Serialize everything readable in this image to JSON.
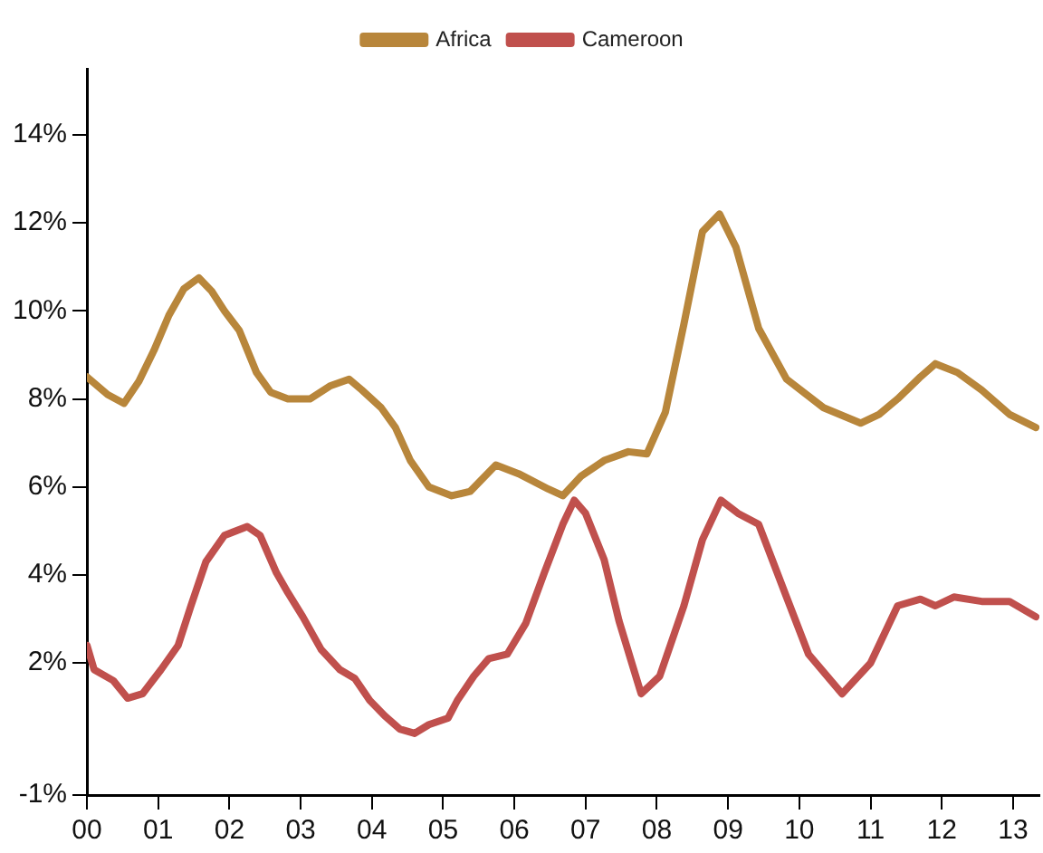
{
  "chart_data": {
    "type": "line",
    "legend": "top",
    "grid": false,
    "marker": "none",
    "line_style": "solid",
    "xlim": [
      2000,
      2013.37
    ],
    "xticks": [
      {
        "value": 2000,
        "label": "00"
      },
      {
        "value": 2001,
        "label": "01"
      },
      {
        "value": 2002,
        "label": "02"
      },
      {
        "value": 2003,
        "label": "03"
      },
      {
        "value": 2004,
        "label": "04"
      },
      {
        "value": 2005,
        "label": "05"
      },
      {
        "value": 2006,
        "label": "06"
      },
      {
        "value": 2007,
        "label": "07"
      },
      {
        "value": 2008,
        "label": "08"
      },
      {
        "value": 2009,
        "label": "09"
      },
      {
        "value": 2010,
        "label": "10"
      },
      {
        "value": 2011,
        "label": "11"
      },
      {
        "value": 2012,
        "label": "12"
      },
      {
        "value": 2013,
        "label": "13"
      }
    ],
    "ylim": [
      -1,
      15.5
    ],
    "yticks": [
      {
        "value": -1,
        "label": "-1%"
      },
      {
        "value": 2,
        "label": "2%"
      },
      {
        "value": 4,
        "label": "4%"
      },
      {
        "value": 6,
        "label": "6%"
      },
      {
        "value": 8,
        "label": "8%"
      },
      {
        "value": 10,
        "label": "10%"
      },
      {
        "value": 12,
        "label": "12%"
      },
      {
        "value": 14,
        "label": "14%"
      }
    ],
    "series": [
      {
        "name": "Africa",
        "color": "#b8863b",
        "x": [
          2000,
          2000.29,
          2000.52,
          2000.73,
          2000.94,
          2001.15,
          2001.36,
          2001.57,
          2001.75,
          2001.93,
          2002.14,
          2002.38,
          2002.58,
          2002.82,
          2003.13,
          2003.42,
          2003.68,
          2003.86,
          2004.13,
          2004.33,
          2004.54,
          2004.8,
          2005.12,
          2005.38,
          2005.74,
          2006.06,
          2006.48,
          2006.68,
          2006.94,
          2007.26,
          2007.6,
          2007.86,
          2008.12,
          2008.38,
          2008.64,
          2008.88,
          2009.11,
          2009.43,
          2009.82,
          2010.34,
          2010.86,
          2011.12,
          2011.38,
          2011.7,
          2011.91,
          2012.22,
          2012.56,
          2012.95,
          2013.32
        ],
        "values": [
          8.5,
          8.1,
          7.9,
          8.4,
          9.1,
          9.9,
          10.5,
          10.75,
          10.45,
          10.0,
          9.55,
          8.6,
          8.15,
          8.0,
          8.0,
          8.3,
          8.45,
          8.2,
          7.8,
          7.35,
          6.6,
          6.0,
          5.8,
          5.9,
          6.5,
          6.3,
          5.95,
          5.8,
          6.25,
          6.6,
          6.8,
          6.75,
          7.7,
          9.7,
          11.8,
          12.2,
          11.45,
          9.6,
          8.45,
          7.8,
          7.45,
          7.65,
          8.0,
          8.5,
          8.8,
          8.6,
          8.2,
          7.65,
          7.35
        ]
      },
      {
        "name": "Cameroon",
        "color": "#c0504d",
        "x": [
          2000,
          2000.1,
          2000.37,
          2000.57,
          2000.78,
          2001.04,
          2001.28,
          2001.46,
          2001.67,
          2001.93,
          2002.25,
          2002.43,
          2002.66,
          2002.82,
          2003.03,
          2003.29,
          2003.55,
          2003.76,
          2003.97,
          2004.18,
          2004.39,
          2004.6,
          2004.8,
          2005.07,
          2005.2,
          2005.43,
          2005.64,
          2005.9,
          2006.16,
          2006.42,
          2006.68,
          2006.84,
          2007.0,
          2007.26,
          2007.47,
          2007.78,
          2008.04,
          2008.38,
          2008.64,
          2008.9,
          2009.14,
          2009.43,
          2009.82,
          2010.13,
          2010.6,
          2011.0,
          2011.38,
          2011.7,
          2011.91,
          2012.17,
          2012.56,
          2012.95,
          2013.32
        ],
        "values": [
          2.4,
          1.85,
          1.6,
          1.2,
          1.3,
          1.85,
          2.4,
          3.3,
          4.3,
          4.9,
          5.1,
          4.9,
          4.05,
          3.6,
          3.05,
          2.3,
          1.85,
          1.65,
          1.15,
          0.8,
          0.5,
          0.4,
          0.6,
          0.75,
          1.15,
          1.7,
          2.1,
          2.2,
          2.9,
          4.05,
          5.15,
          5.7,
          5.4,
          4.35,
          2.95,
          1.3,
          1.7,
          3.3,
          4.8,
          5.7,
          5.4,
          5.15,
          3.5,
          2.2,
          1.3,
          2.0,
          3.3,
          3.45,
          3.3,
          3.5,
          3.4,
          3.4,
          3.05
        ]
      }
    ]
  }
}
